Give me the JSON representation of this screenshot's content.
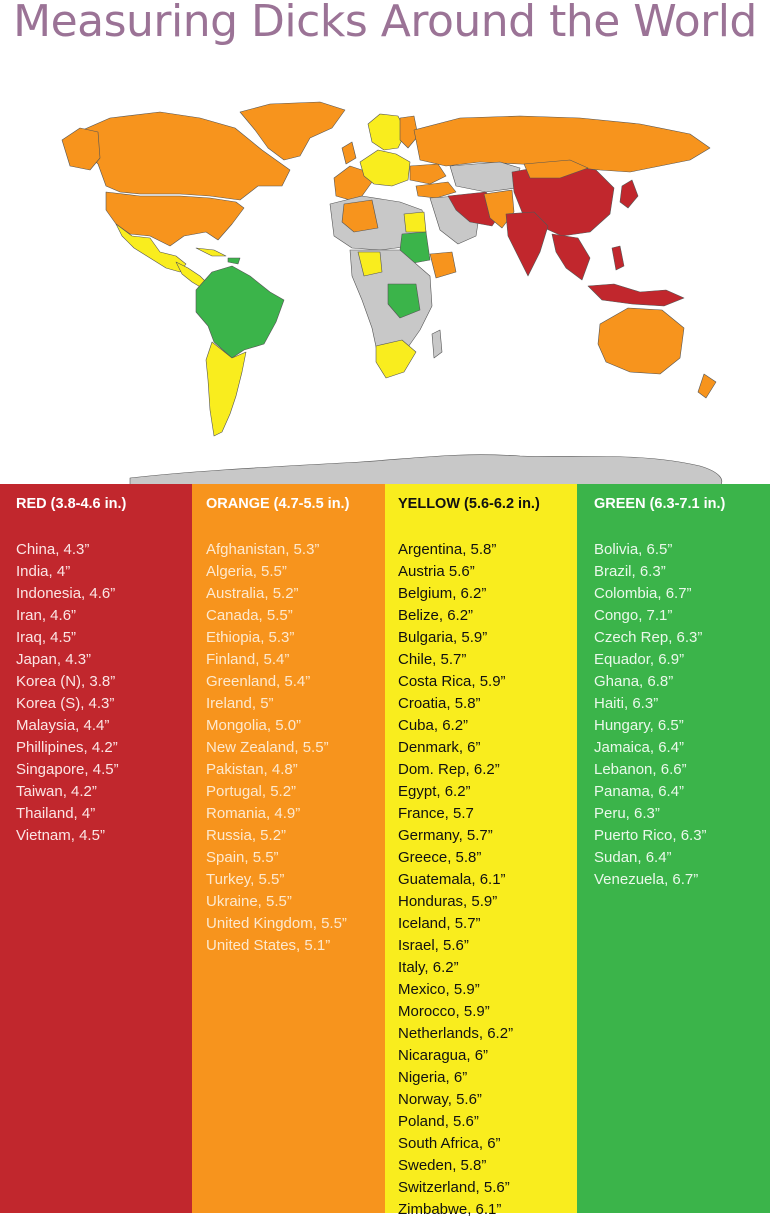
{
  "title": "Measuring Dicks Around the World",
  "colors": {
    "title": "#9b7396",
    "red": "#c1272d",
    "orange": "#f7941d",
    "yellow": "#f9ed1e",
    "green": "#3bb44a",
    "grey": "#c8c8c8"
  },
  "columns": [
    {
      "key": "red",
      "header": "RED (3.8-4.6 in.)",
      "items": [
        "China, 4.3”",
        "India, 4”",
        "Indonesia, 4.6”",
        "Iran, 4.6”",
        "Iraq, 4.5”",
        "Japan, 4.3”",
        "Korea (N), 3.8”",
        "Korea (S), 4.3”",
        "Malaysia, 4.4”",
        "Phillipines, 4.2”",
        "Singapore, 4.5”",
        "Taiwan, 4.2”",
        "Thailand, 4”",
        "Vietnam, 4.5”"
      ]
    },
    {
      "key": "orange",
      "header": "ORANGE (4.7-5.5 in.)",
      "items": [
        "Afghanistan, 5.3”",
        "Algeria, 5.5”",
        "Australia, 5.2”",
        "Canada, 5.5”",
        "Ethiopia, 5.3”",
        "Finland, 5.4”",
        "Greenland, 5.4”",
        "Ireland, 5”",
        "Mongolia, 5.0”",
        "New Zealand, 5.5”",
        "Pakistan, 4.8”",
        "Portugal, 5.2”",
        "Romania, 4.9”",
        "Russia, 5.2”",
        "Spain, 5.5”",
        "Turkey, 5.5”",
        "Ukraine, 5.5”",
        "United Kingdom, 5.5”",
        "United States, 5.1”"
      ]
    },
    {
      "key": "yellow",
      "header": "YELLOW (5.6-6.2 in.)",
      "items": [
        "Argentina, 5.8”",
        "Austria 5.6”",
        "Belgium, 6.2”",
        "Belize, 6.2”",
        "Bulgaria, 5.9”",
        "Chile, 5.7”",
        "Costa Rica, 5.9”",
        "Croatia, 5.8”",
        "Cuba, 6.2”",
        "Denmark, 6”",
        "Dom. Rep, 6.2”",
        "Egypt, 6.2”",
        "France, 5.7",
        "Germany, 5.7”",
        "Greece, 5.8”",
        "Guatemala, 6.1”",
        "Honduras, 5.9”",
        "Iceland, 5.7”",
        "Israel, 5.6”",
        "Italy, 6.2”",
        "Mexico, 5.9”",
        "Morocco, 5.9”",
        "Netherlands, 6.2”",
        "Nicaragua, 6”",
        "Nigeria, 6”",
        "Norway, 5.6”",
        "Poland, 5.6”",
        "South Africa, 6”",
        "Sweden, 5.8”",
        "Switzerland, 5.6”",
        "Zimbabwe, 6.1”"
      ]
    },
    {
      "key": "green",
      "header": "GREEN (6.3-7.1 in.)",
      "items": [
        "Bolivia, 6.5”",
        "Brazil, 6.3”",
        "Colombia, 6.7”",
        "Congo, 7.1”",
        "Czech Rep, 6.3”",
        "Equador, 6.9”",
        "Ghana, 6.8”",
        "Haiti, 6.3”",
        "Hungary, 6.5”",
        "Jamaica, 6.4”",
        "Lebanon, 6.6”",
        "Panama, 6.4”",
        "Peru, 6.3”",
        "Puerto Rico, 6.3”",
        "Sudan, 6.4”",
        "Venezuela, 6.7”"
      ]
    }
  ]
}
